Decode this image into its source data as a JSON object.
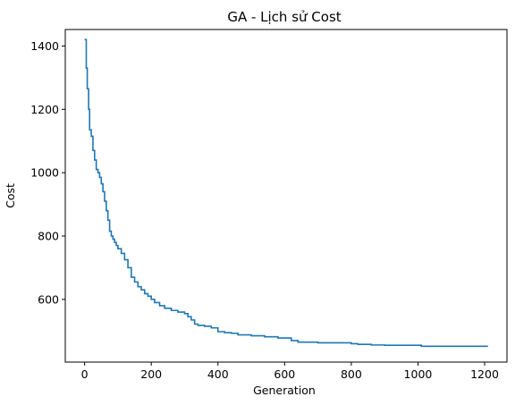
{
  "chart_data": {
    "type": "line",
    "title": "GA - Lịch sử Cost",
    "xlabel": "Generation",
    "ylabel": "Cost",
    "xlim": [
      -58,
      1267
    ],
    "ylim": [
      402,
      1452
    ],
    "xticks": [
      0,
      200,
      400,
      600,
      800,
      1000,
      1200
    ],
    "yticks": [
      600,
      800,
      1000,
      1200,
      1400
    ],
    "grid": false,
    "legend": "none",
    "line_color": "#1f77b4",
    "series": [
      {
        "x": [
          0,
          5,
          8,
          12,
          15,
          20,
          25,
          30,
          35,
          40,
          45,
          50,
          55,
          60,
          65,
          70,
          75,
          80,
          85,
          90,
          95,
          100,
          110,
          120,
          130,
          140,
          150,
          160,
          170,
          180,
          190,
          200,
          210,
          225,
          240,
          260,
          280,
          300,
          310,
          320,
          330,
          340,
          360,
          380,
          400,
          420,
          440,
          460,
          500,
          540,
          580,
          620,
          640,
          700,
          760,
          800,
          820,
          860,
          900,
          960,
          1000,
          1010,
          1100,
          1150,
          1210
        ],
        "values": [
          1420,
          1330,
          1265,
          1200,
          1135,
          1115,
          1070,
          1040,
          1010,
          1000,
          985,
          965,
          940,
          910,
          880,
          850,
          815,
          800,
          790,
          780,
          770,
          760,
          745,
          725,
          700,
          670,
          655,
          640,
          630,
          618,
          610,
          600,
          590,
          580,
          572,
          565,
          560,
          555,
          545,
          535,
          522,
          518,
          515,
          510,
          498,
          495,
          493,
          488,
          485,
          482,
          478,
          470,
          465,
          463,
          463,
          460,
          458,
          456,
          455,
          455,
          455,
          452,
          452,
          452,
          452
        ]
      }
    ]
  }
}
